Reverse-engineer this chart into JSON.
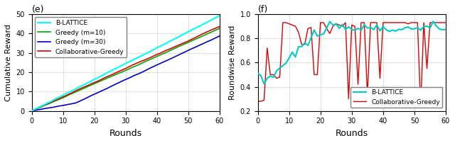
{
  "left": {
    "title": "(e)",
    "xlabel": "Rounds",
    "ylabel": "Cumulative Reward",
    "xlim": [
      0,
      60
    ],
    "ylim": [
      0,
      50
    ],
    "xticks": [
      0,
      10,
      20,
      30,
      40,
      50,
      60
    ],
    "yticks": [
      0,
      10,
      20,
      30,
      40,
      50
    ],
    "lines": {
      "B-LATTICE": {
        "color": "#00ffff",
        "lw": 1.5,
        "zorder": 3
      },
      "Greedy (m=10)": {
        "color": "#00aa00",
        "lw": 1.2,
        "zorder": 2
      },
      "Greedy (m=30)": {
        "color": "#0000cc",
        "lw": 1.2,
        "zorder": 2
      },
      "Collaborative-Greedy": {
        "color": "#dd0000",
        "lw": 1.2,
        "zorder": 2
      }
    }
  },
  "right": {
    "title": "(f)",
    "xlabel": "Rounds",
    "ylabel": "Roundwise Reward",
    "xlim": [
      0,
      60
    ],
    "ylim": [
      0.2,
      1.0
    ],
    "xticks": [
      0,
      10,
      20,
      30,
      40,
      50,
      60
    ],
    "yticks": [
      0.2,
      0.4,
      0.6,
      0.8,
      1.0
    ],
    "lines": {
      "B-LATTICE": {
        "color": "#00cccc",
        "lw": 1.5,
        "zorder": 3
      },
      "Collaborative-Greedy": {
        "color": "#dd0000",
        "lw": 1.0,
        "zorder": 2
      }
    }
  }
}
